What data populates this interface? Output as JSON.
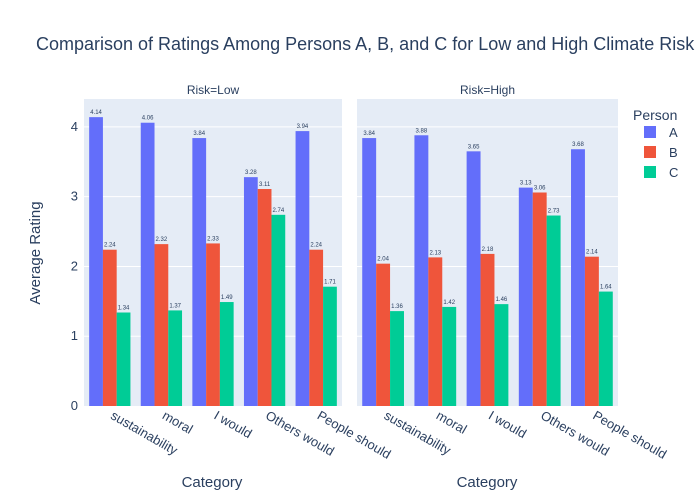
{
  "chart_data": {
    "type": "bar",
    "title": "Comparison of Ratings Among Persons A, B, and C for Low and High Climate Risk",
    "xlabel": "Category",
    "ylabel": "Average Rating",
    "ylim": [
      0,
      4.4
    ],
    "yticks": [
      "0",
      "1",
      "2",
      "3",
      "4"
    ],
    "categories": [
      "sustainability",
      "moral",
      "I would",
      "Others would",
      "People should"
    ],
    "legend": {
      "title": "Person",
      "position": "top-right",
      "items": [
        {
          "name": "A",
          "color": "#636efa"
        },
        {
          "name": "B",
          "color": "#ef553b"
        },
        {
          "name": "C",
          "color": "#00cc96"
        }
      ]
    },
    "grid": true,
    "panels": [
      {
        "label": "Risk=Low",
        "series": [
          {
            "name": "A",
            "values": [
              4.14,
              4.06,
              3.84,
              3.28,
              3.94
            ],
            "labels": [
              "4.14",
              "4.06",
              "3.84",
              "3.28",
              "3.94"
            ]
          },
          {
            "name": "B",
            "values": [
              2.24,
              2.32,
              2.33,
              3.11,
              2.24
            ],
            "labels": [
              "2.24",
              "2.32",
              "2.33",
              "3.11",
              "2.24"
            ]
          },
          {
            "name": "C",
            "values": [
              1.34,
              1.37,
              1.49,
              2.74,
              1.71
            ],
            "labels": [
              "1.34",
              "1.37",
              "1.49",
              "2.74",
              "1.71"
            ]
          }
        ]
      },
      {
        "label": "Risk=High",
        "series": [
          {
            "name": "A",
            "values": [
              3.84,
              3.88,
              3.65,
              3.13,
              3.68
            ],
            "labels": [
              "3.84",
              "3.88",
              "3.65",
              "3.13",
              "3.68"
            ]
          },
          {
            "name": "B",
            "values": [
              2.04,
              2.13,
              2.18,
              3.06,
              2.14
            ],
            "labels": [
              "2.04",
              "2.13",
              "2.18",
              "3.06",
              "2.14"
            ]
          },
          {
            "name": "C",
            "values": [
              1.36,
              1.42,
              1.46,
              2.73,
              1.64
            ],
            "labels": [
              "1.36",
              "1.42",
              "1.46",
              "2.73",
              "1.64"
            ]
          }
        ]
      }
    ]
  }
}
